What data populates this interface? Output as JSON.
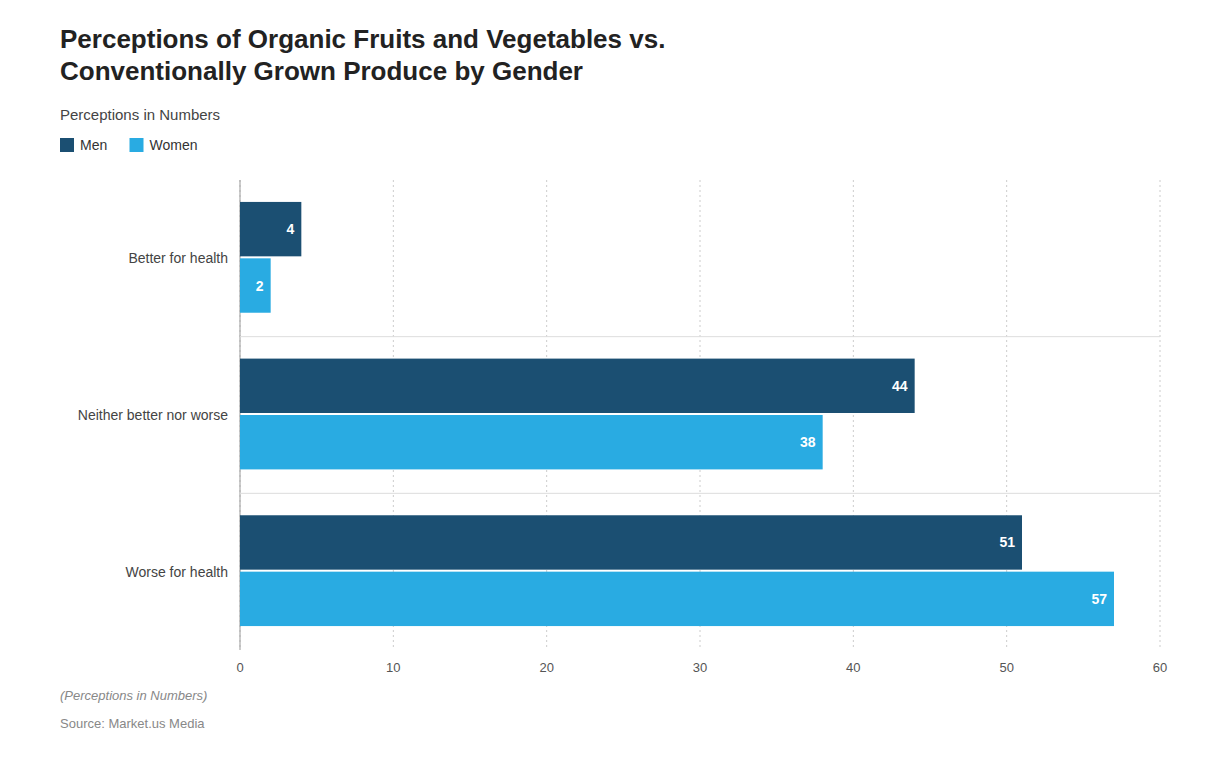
{
  "chart_data": {
    "type": "bar",
    "orientation": "horizontal",
    "title": "Perceptions of Organic Fruits and Vegetables vs.\nConventionally Grown Produce by Gender",
    "subtitle": "Perceptions in Numbers",
    "categories": [
      "Better for health",
      "Neither better nor worse",
      "Worse for health"
    ],
    "series": [
      {
        "name": "Men",
        "color": "#1b4f72",
        "values": [
          4,
          44,
          51
        ]
      },
      {
        "name": "Women",
        "color": "#29abe2",
        "values": [
          2,
          38,
          57
        ]
      }
    ],
    "xlim": [
      0,
      60
    ],
    "xticks": [
      0,
      10,
      20,
      30,
      40,
      50,
      60
    ],
    "grid": true,
    "legend": "top-left",
    "data_labels": true,
    "annotations": [
      "(Perceptions in Numbers)",
      "Source: Market.us Media"
    ]
  }
}
